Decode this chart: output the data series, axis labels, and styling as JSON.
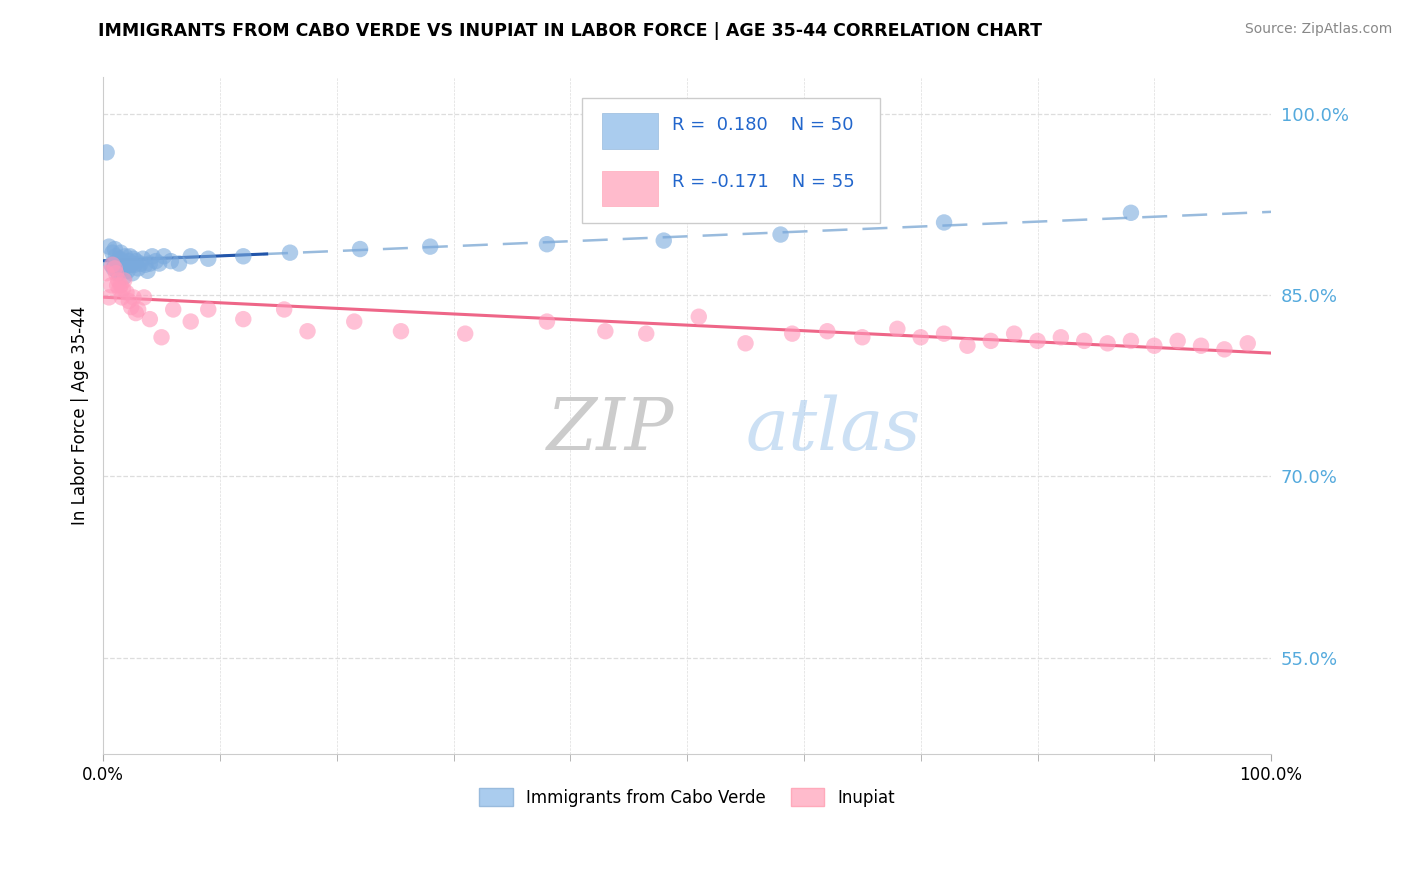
{
  "title": "IMMIGRANTS FROM CABO VERDE VS INUPIAT IN LABOR FORCE | AGE 35-44 CORRELATION CHART",
  "source": "Source: ZipAtlas.com",
  "ylabel": "In Labor Force | Age 35-44",
  "xlim": [
    0.0,
    1.0
  ],
  "ylim": [
    0.47,
    1.03
  ],
  "x_ticks": [
    0.0,
    1.0
  ],
  "x_tick_labels": [
    "0.0%",
    "100.0%"
  ],
  "y_ticks": [
    0.55,
    0.7,
    0.85,
    1.0
  ],
  "y_tick_labels": [
    "55.0%",
    "70.0%",
    "85.0%",
    "100.0%"
  ],
  "legend_r1": "R =  0.180",
  "legend_n1": "N = 50",
  "legend_r2": "R = -0.171",
  "legend_n2": "N = 55",
  "blue_scatter_color": "#7AAADD",
  "pink_scatter_color": "#FF99BB",
  "blue_line_color": "#2255AA",
  "pink_line_color": "#EE6688",
  "dashed_line_color": "#99BBDD",
  "legend_text_color": "#2266CC",
  "blue_legend_color": "#AACCEE",
  "pink_legend_color": "#FFBBCC",
  "background_color": "#FFFFFF",
  "grid_color": "#DDDDDD",
  "ytick_color": "#55AADD",
  "cabo_verde_x": [
    0.003,
    0.005,
    0.007,
    0.008,
    0.009,
    0.01,
    0.01,
    0.011,
    0.012,
    0.012,
    0.013,
    0.014,
    0.015,
    0.015,
    0.016,
    0.017,
    0.018,
    0.019,
    0.02,
    0.021,
    0.022,
    0.023,
    0.024,
    0.025,
    0.026,
    0.027,
    0.028,
    0.03,
    0.032,
    0.034,
    0.036,
    0.038,
    0.04,
    0.042,
    0.045,
    0.048,
    0.052,
    0.058,
    0.065,
    0.075,
    0.09,
    0.12,
    0.16,
    0.22,
    0.28,
    0.38,
    0.48,
    0.58,
    0.72,
    0.88
  ],
  "cabo_verde_y": [
    0.968,
    0.89,
    0.875,
    0.885,
    0.872,
    0.876,
    0.888,
    0.882,
    0.878,
    0.87,
    0.868,
    0.88,
    0.875,
    0.885,
    0.878,
    0.872,
    0.865,
    0.882,
    0.876,
    0.87,
    0.878,
    0.882,
    0.875,
    0.868,
    0.88,
    0.875,
    0.878,
    0.872,
    0.876,
    0.88,
    0.875,
    0.87,
    0.876,
    0.882,
    0.878,
    0.876,
    0.882,
    0.878,
    0.876,
    0.882,
    0.88,
    0.882,
    0.885,
    0.888,
    0.89,
    0.892,
    0.895,
    0.9,
    0.91,
    0.918
  ],
  "inupiat_x": [
    0.003,
    0.005,
    0.007,
    0.008,
    0.01,
    0.011,
    0.012,
    0.013,
    0.014,
    0.015,
    0.016,
    0.017,
    0.018,
    0.02,
    0.022,
    0.024,
    0.026,
    0.028,
    0.03,
    0.035,
    0.04,
    0.05,
    0.06,
    0.075,
    0.09,
    0.12,
    0.155,
    0.175,
    0.215,
    0.255,
    0.31,
    0.38,
    0.43,
    0.465,
    0.51,
    0.55,
    0.59,
    0.62,
    0.65,
    0.68,
    0.7,
    0.72,
    0.74,
    0.76,
    0.78,
    0.8,
    0.82,
    0.84,
    0.86,
    0.88,
    0.9,
    0.92,
    0.94,
    0.96,
    0.98
  ],
  "inupiat_y": [
    0.868,
    0.848,
    0.858,
    0.875,
    0.872,
    0.868,
    0.858,
    0.862,
    0.855,
    0.858,
    0.848,
    0.855,
    0.862,
    0.852,
    0.845,
    0.84,
    0.848,
    0.835,
    0.838,
    0.848,
    0.83,
    0.815,
    0.838,
    0.828,
    0.838,
    0.83,
    0.838,
    0.82,
    0.828,
    0.82,
    0.818,
    0.828,
    0.82,
    0.818,
    0.832,
    0.81,
    0.818,
    0.82,
    0.815,
    0.822,
    0.815,
    0.818,
    0.808,
    0.812,
    0.818,
    0.812,
    0.815,
    0.812,
    0.81,
    0.812,
    0.808,
    0.812,
    0.808,
    0.805,
    0.81
  ]
}
